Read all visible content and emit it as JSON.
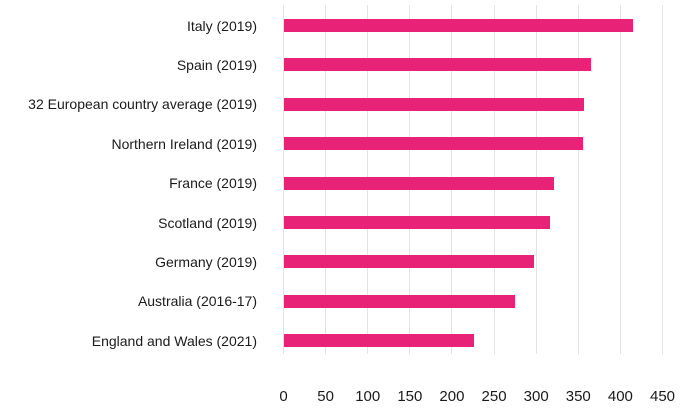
{
  "chart_data": {
    "type": "bar",
    "orientation": "horizontal",
    "title": "",
    "xlabel": "",
    "ylabel": "",
    "categories": [
      "Italy (2019)",
      "Spain (2019)",
      "32 European country average (2019)",
      "Northern Ireland (2019)",
      "France (2019)",
      "Scotland (2019)",
      "Germany (2019)",
      "Australia (2016-17)",
      "England and Wales (2021)"
    ],
    "values": [
      415,
      366,
      357,
      356,
      322,
      317,
      298,
      275,
      227
    ],
    "xlim": [
      0,
      450
    ],
    "xticks": [
      0,
      50,
      100,
      150,
      200,
      250,
      300,
      350,
      400,
      450
    ],
    "grid": "vertical-gridlines-on",
    "legend": "none",
    "colors": {
      "bar": "#e82277",
      "gridline": "#e3e3e3",
      "text": "#1a1a1a",
      "background": "#ffffff"
    }
  }
}
